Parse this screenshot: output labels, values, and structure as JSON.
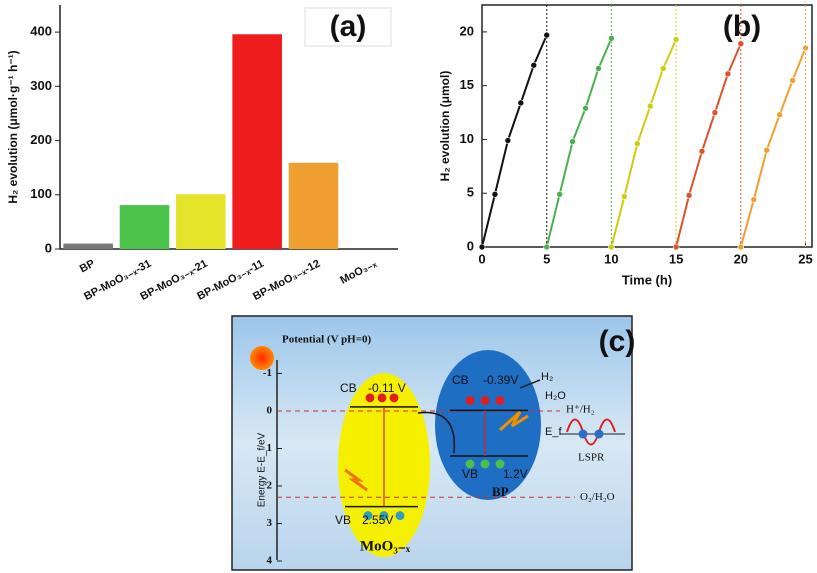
{
  "chart_data": [
    {
      "type": "bar",
      "label": "(a)",
      "ylabel": "H₂ evolution (μmol·g⁻¹ h⁻¹)",
      "categories": [
        "BP",
        "BP-MoO₃₋ₓ-31",
        "BP-MoO₃₋ₓ-21",
        "BP-MoO₃₋ₓ-11",
        "BP-MoO₃₋ₓ-12",
        "MoO₃₋ₓ"
      ],
      "values": [
        10,
        81,
        101,
        396,
        159,
        0
      ],
      "colors": [
        "#777777",
        "#4cc44c",
        "#e4e42a",
        "#ee1c1c",
        "#f0a030",
        "#cccccc"
      ],
      "ylim": [
        0,
        450
      ],
      "yticks": [
        0,
        100,
        200,
        300,
        400
      ]
    },
    {
      "type": "line",
      "label": "(b)",
      "xlabel": "Time (h)",
      "ylabel": "H₂ evolution (μmol)",
      "series": [
        {
          "color": "#111111",
          "x": [
            0,
            1,
            2,
            3,
            4,
            5
          ],
          "values": [
            0,
            4.9,
            9.9,
            13.4,
            16.9,
            19.7
          ]
        },
        {
          "color": "#4caf50",
          "x": [
            5,
            6,
            7,
            8,
            9,
            10
          ],
          "values": [
            0,
            4.9,
            9.8,
            12.9,
            16.6,
            19.4
          ]
        },
        {
          "color": "#cccc10",
          "x": [
            10,
            11,
            12,
            13,
            14,
            15
          ],
          "values": [
            0,
            4.7,
            9.6,
            13.1,
            16.6,
            19.3
          ]
        },
        {
          "color": "#e0502a",
          "x": [
            15,
            16,
            17,
            18,
            19,
            20
          ],
          "values": [
            0,
            4.8,
            8.9,
            12.5,
            16.1,
            18.9
          ]
        },
        {
          "color": "#f0a030",
          "x": [
            20,
            21,
            22,
            23,
            24,
            25
          ],
          "values": [
            0,
            4.4,
            9.0,
            12.3,
            15.5,
            18.5
          ]
        }
      ],
      "xlim": [
        0,
        25.5
      ],
      "xticks": [
        0,
        5,
        10,
        15,
        20,
        25
      ],
      "ylim": [
        0,
        22.5
      ],
      "yticks": [
        0,
        5,
        10,
        15,
        20
      ]
    }
  ],
  "diagram": {
    "label": "(c)",
    "potential_label": "Potential (V pH=0)",
    "y_label": "Energy E-E_f/eV",
    "yticks": [
      -1,
      0,
      1,
      2,
      3,
      4
    ],
    "mo": {
      "cb": "CB",
      "cb_value": "-0.11 V",
      "vb": "VB",
      "vb_value": "2.55V",
      "name": "MoO₃₋ₓ"
    },
    "bp": {
      "cb": "CB",
      "cb_value": "-0.39V",
      "vb": "VB",
      "vb_value": "1.2V",
      "name": "BP"
    },
    "h2": "H₂",
    "h2o": "H₂O",
    "h_couple": "H⁺/H₂",
    "o_couple": "O₂/H₂O",
    "ef": "E_f",
    "lspr": "LSPR"
  }
}
